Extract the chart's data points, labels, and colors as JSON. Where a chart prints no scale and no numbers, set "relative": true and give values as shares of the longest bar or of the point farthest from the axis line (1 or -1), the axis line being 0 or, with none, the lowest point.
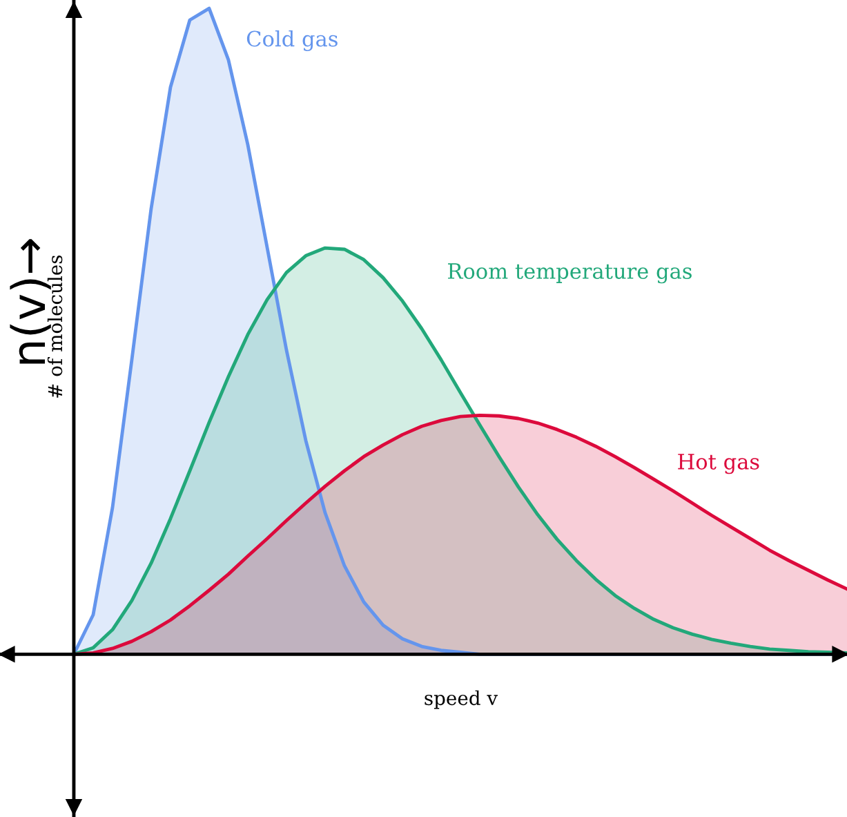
{
  "chart_data": {
    "type": "area",
    "relative": true,
    "xlabel": "speed v",
    "ylabel": "# of molecules",
    "annotations": [
      "n(v)→"
    ],
    "legend": false,
    "categories": [
      null,
      null,
      null,
      null,
      null,
      null,
      null,
      null,
      null,
      null,
      null,
      null,
      null,
      null,
      null,
      null,
      null,
      null,
      null,
      null,
      null,
      null,
      null,
      null,
      null,
      null,
      null,
      null,
      null,
      null,
      null,
      null,
      null,
      null,
      null,
      null,
      null,
      null,
      null,
      null,
      null
    ],
    "series": [
      {
        "name": "Cold gas",
        "color": "#6495ed",
        "values": [
          0,
          0.061,
          0.227,
          0.456,
          0.69,
          0.878,
          0.982,
          1,
          0.92,
          0.789,
          0.63,
          0.471,
          0.331,
          0.219,
          0.137,
          0.081,
          0.045,
          0.024,
          0.012,
          0.006,
          0.003,
          0,
          0,
          0,
          0,
          0,
          0,
          0,
          0,
          0,
          0,
          0,
          0,
          0,
          0,
          0,
          0,
          0,
          0,
          0,
          0
        ]
      },
      {
        "name": "Room temperature gas",
        "color": "#22a87a",
        "values": [
          0,
          0.01,
          0.038,
          0.083,
          0.141,
          0.21,
          0.284,
          0.359,
          0.43,
          0.495,
          0.549,
          0.591,
          0.617,
          0.629,
          0.627,
          0.611,
          0.583,
          0.547,
          0.504,
          0.456,
          0.405,
          0.355,
          0.306,
          0.259,
          0.216,
          0.178,
          0.145,
          0.116,
          0.091,
          0.071,
          0.054,
          0.041,
          0.031,
          0.023,
          0.017,
          0.012,
          0.008,
          0.006,
          0.004,
          0.003,
          0.002
        ]
      },
      {
        "name": "Hot gas",
        "color": "#dc0a3c",
        "values": [
          0,
          0.002,
          0.009,
          0.02,
          0.035,
          0.053,
          0.075,
          0.099,
          0.124,
          0.152,
          0.179,
          0.207,
          0.234,
          0.26,
          0.284,
          0.306,
          0.324,
          0.34,
          0.353,
          0.362,
          0.368,
          0.37,
          0.369,
          0.365,
          0.358,
          0.348,
          0.336,
          0.322,
          0.306,
          0.289,
          0.271,
          0.253,
          0.234,
          0.215,
          0.197,
          0.179,
          0.161,
          0.145,
          0.13,
          0.115,
          0.101
        ]
      }
    ]
  }
}
